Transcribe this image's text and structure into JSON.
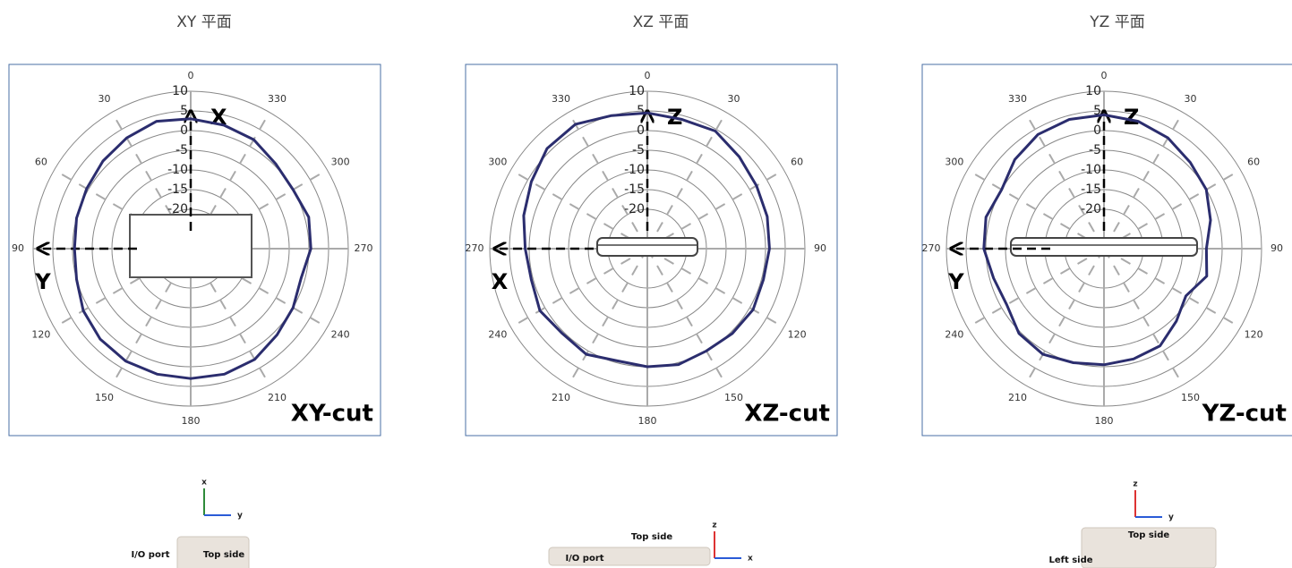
{
  "chart_data": [
    {
      "type": "polar",
      "title": "XY 平面",
      "annotation": "XY-cut",
      "direction": "counterclockwise",
      "axis_labels": {
        "up": "X",
        "left": "Y"
      },
      "color": "#2b2d6e",
      "rlim": [
        -30,
        10
      ],
      "rticks": [
        10,
        5,
        0,
        -5,
        -10,
        -15,
        -20
      ],
      "theta_ticks": [
        0,
        30,
        60,
        90,
        120,
        150,
        180,
        210,
        240,
        270,
        300,
        330
      ],
      "theta": [
        0,
        15,
        30,
        45,
        60,
        75,
        90,
        105,
        120,
        135,
        150,
        165,
        180,
        195,
        210,
        225,
        240,
        255,
        270,
        285,
        300,
        315,
        330,
        345
      ],
      "values": [
        3,
        3.5,
        2.5,
        1.5,
        0.5,
        0,
        -0.5,
        0,
        1.5,
        2.5,
        3,
        3,
        3,
        3,
        2.5,
        1,
        0,
        -1,
        0.5,
        1,
        0,
        0.5,
        2,
        2.5
      ],
      "device_labels": [
        "I/O port",
        "Top side"
      ],
      "coord_axes": [
        "x",
        "y"
      ]
    },
    {
      "type": "polar",
      "title": "XZ 平面",
      "annotation": "XZ-cut",
      "direction": "clockwise",
      "axis_labels": {
        "up": "Z",
        "left": "X"
      },
      "color": "#2b2d6e",
      "rlim": [
        -30,
        10
      ],
      "rticks": [
        10,
        5,
        0,
        -5,
        -10,
        -15,
        -20
      ],
      "theta_ticks": [
        0,
        30,
        60,
        90,
        120,
        150,
        180,
        210,
        240,
        270,
        300,
        330
      ],
      "theta": [
        0,
        15,
        30,
        45,
        60,
        75,
        90,
        105,
        120,
        135,
        150,
        165,
        180,
        195,
        210,
        225,
        240,
        255,
        270,
        285,
        300,
        315,
        330,
        345
      ],
      "values": [
        4.5,
        4,
        4.5,
        3,
        2,
        1.5,
        1,
        0.5,
        1,
        0.5,
        0,
        0.5,
        0,
        -0.5,
        1,
        0.5,
        1.5,
        0.5,
        1,
        2.5,
        4,
        6,
        6.5,
        5
      ],
      "device_labels": [
        "Top side",
        "I/O port"
      ],
      "coord_axes": [
        "z",
        "x"
      ]
    },
    {
      "type": "polar",
      "title": "YZ 平面",
      "annotation": "YZ-cut",
      "direction": "clockwise",
      "axis_labels": {
        "up": "Z",
        "left": "Y"
      },
      "color": "#2b2d6e",
      "rlim": [
        -30,
        10
      ],
      "rticks": [
        10,
        5,
        0,
        -5,
        -10,
        -15,
        -20
      ],
      "theta_ticks": [
        0,
        30,
        60,
        90,
        120,
        150,
        180,
        210,
        240,
        270,
        300,
        330
      ],
      "theta": [
        0,
        15,
        30,
        45,
        60,
        75,
        90,
        105,
        120,
        135,
        150,
        165,
        180,
        195,
        210,
        225,
        240,
        255,
        270,
        285,
        300,
        315,
        330,
        345
      ],
      "values": [
        4,
        3.5,
        2.5,
        1,
        0,
        -2,
        -4,
        -3,
        -6,
        -4,
        -1.5,
        -1,
        -0.5,
        0,
        1,
        0.5,
        -1.5,
        -1,
        0.5,
        1,
        0,
        2,
        3.5,
        4
      ],
      "device_labels": [
        "Top side",
        "Left side"
      ],
      "coord_axes": [
        "z",
        "y"
      ]
    }
  ]
}
